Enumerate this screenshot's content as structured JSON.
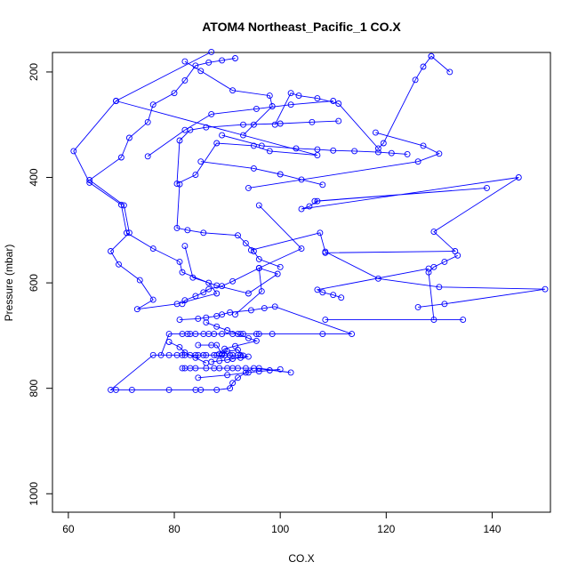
{
  "chart_data": {
    "type": "line",
    "title": "ATOM4 Northeast_Pacific_1 CO.X",
    "xlabel": "CO.X",
    "ylabel": "Pressure (mbar)",
    "xlim": [
      57,
      151
    ],
    "ylim": [
      1035,
      163
    ],
    "x_ticks": [
      60,
      80,
      100,
      120,
      140
    ],
    "y_ticks": [
      200,
      400,
      600,
      800,
      1000
    ],
    "x_tick_labels": [
      "60",
      "80",
      "100",
      "120",
      "140"
    ],
    "y_tick_labels": [
      "200",
      "400",
      "600",
      "800",
      "1000"
    ],
    "y_reversed": true,
    "grid": false,
    "series_color": "#0000ff",
    "series": [
      {
        "x": [
          87,
          69,
          61,
          64,
          70,
          71,
          76,
          81,
          81.5,
          86.5,
          88,
          80.5,
          73,
          76,
          73.5,
          69.5,
          68,
          71.5,
          70.5,
          64,
          70,
          71.5,
          75,
          76,
          80,
          82,
          84,
          86.5,
          89,
          91.5
        ],
        "y": [
          162,
          255,
          350,
          410,
          452,
          505,
          535,
          560,
          580,
          600,
          620,
          640,
          650,
          632,
          595,
          565,
          540,
          505,
          453,
          405,
          362,
          325,
          295,
          262,
          240,
          216,
          188,
          182,
          178,
          174
        ]
      },
      {
        "x": [
          82,
          85,
          91,
          98,
          98.5,
          95,
          93
        ],
        "y": [
          180,
          198,
          235,
          245,
          265,
          300,
          320
        ]
      },
      {
        "x": [
          69,
          107,
          98,
          95,
          88,
          84,
          80.5,
          81,
          83,
          86,
          93,
          100,
          106,
          111
        ],
        "y": [
          255,
          358,
          350,
          340,
          335,
          395,
          412,
          330,
          310,
          305,
          300,
          298,
          295,
          293
        ]
      },
      {
        "x": [
          75,
          82,
          87,
          95.5,
          102,
          110
        ],
        "y": [
          360,
          310,
          280,
          270,
          262,
          255
        ]
      },
      {
        "x": [
          99,
          102,
          103.5,
          107,
          111,
          118.5,
          119.5,
          125.5,
          127,
          128.5,
          132,
          128.5
        ],
        "y": [
          300,
          240,
          245,
          250,
          260,
          345,
          335,
          215,
          190,
          170,
          200,
          170
        ]
      },
      {
        "x": [
          94,
          126,
          130,
          127,
          118
        ],
        "y": [
          420,
          370,
          355,
          340,
          315
        ]
      },
      {
        "x": [
          89,
          96.5,
          103,
          107,
          110,
          114,
          118.5,
          121,
          124
        ],
        "y": [
          320,
          340,
          345,
          347,
          349,
          350,
          352,
          354,
          356
        ]
      },
      {
        "x": [
          85,
          95,
          100,
          104,
          108
        ],
        "y": [
          370,
          383,
          394,
          404,
          414
        ]
      },
      {
        "x": [
          106.5,
          139,
          107,
          105.5,
          104,
          145,
          129,
          133,
          108.5
        ],
        "y": [
          445,
          420,
          445,
          455,
          460,
          400,
          503,
          540,
          543
        ]
      },
      {
        "x": [
          96,
          104,
          96,
          91,
          89,
          86.5,
          85.5,
          84,
          82,
          81.5
        ],
        "y": [
          453,
          535,
          572,
          597,
          606,
          612,
          618,
          625,
          633,
          640
        ]
      },
      {
        "x": [
          94.5,
          107.5,
          108.5,
          118.5,
          130,
          150,
          131,
          126
        ],
        "y": [
          538,
          505,
          541,
          592,
          608,
          612,
          640,
          646
        ]
      },
      {
        "x": [
          82,
          83.5,
          88,
          94,
          99.5,
          96,
          96.5,
          91.5
        ],
        "y": [
          530,
          590,
          605,
          620,
          583,
          572,
          616,
          660
        ]
      },
      {
        "x": [
          81,
          80.5,
          82.5,
          85.5,
          92,
          93.5,
          95,
          96,
          100
        ],
        "y": [
          413,
          496,
          500,
          505,
          510,
          525,
          540,
          555,
          570
        ]
      },
      {
        "x": [
          128,
          107,
          108,
          110,
          111.5
        ],
        "y": [
          573,
          613,
          618,
          623,
          628
        ]
      },
      {
        "x": [
          133.5,
          131,
          129,
          128,
          129,
          108.5,
          134.5
        ],
        "y": [
          548,
          560,
          570,
          580,
          670,
          670,
          670
        ]
      },
      {
        "x": [
          81,
          84.5,
          86,
          88,
          89,
          90.5,
          94.5,
          97,
          99,
          113.5,
          108,
          98.5,
          96,
          95.5,
          93,
          92.5,
          91,
          89,
          87.5,
          86.5,
          85.5,
          84,
          83,
          82.5,
          81.5,
          79,
          77.5,
          82,
          84.5,
          86,
          88,
          89.5,
          90.5,
          92,
          92.5,
          91,
          89,
          87.5,
          85.5,
          84,
          83,
          81.5,
          80.5,
          79,
          76,
          68,
          69,
          72,
          79,
          84,
          85,
          88,
          90.5,
          91,
          92,
          93.5,
          95,
          102,
          96,
          93.5,
          92,
          91,
          90,
          88.5,
          87.5,
          86,
          84,
          83,
          82,
          81.5
        ],
        "y": [
          670,
          668,
          666,
          663,
          660,
          656,
          652,
          648,
          645,
          697,
          697,
          697,
          697,
          697,
          697,
          697,
          697,
          697,
          697,
          697,
          697,
          697,
          697,
          697,
          697,
          697,
          737,
          737,
          737,
          737,
          737,
          737,
          737,
          737,
          737,
          737,
          737,
          737,
          737,
          737,
          737,
          737,
          737,
          737,
          737,
          803,
          803,
          803,
          803,
          803,
          803,
          803,
          800,
          790,
          780,
          770,
          762,
          770,
          762,
          762,
          762,
          762,
          762,
          762,
          762,
          762,
          762,
          762,
          762,
          762
        ]
      },
      {
        "x": [
          84.5,
          87,
          88,
          89,
          90,
          92,
          93,
          94,
          92.5,
          91,
          90,
          88.5,
          87
        ],
        "y": [
          718,
          718,
          718,
          735,
          730,
          727,
          738,
          740,
          742,
          744,
          746,
          748,
          750
        ]
      },
      {
        "x": [
          86,
          88,
          90,
          92,
          94,
          95.5,
          91.5,
          89.5,
          88.5
        ],
        "y": [
          675,
          683,
          690,
          697,
          705,
          710,
          720,
          725,
          735
        ]
      },
      {
        "x": [
          84.5,
          90,
          94,
          96,
          98,
          100
        ],
        "y": [
          780,
          775,
          770,
          768,
          766,
          764
        ]
      },
      {
        "x": [
          79,
          81,
          82,
          84,
          86
        ],
        "y": [
          712,
          722,
          732,
          742,
          752
        ]
      }
    ]
  }
}
